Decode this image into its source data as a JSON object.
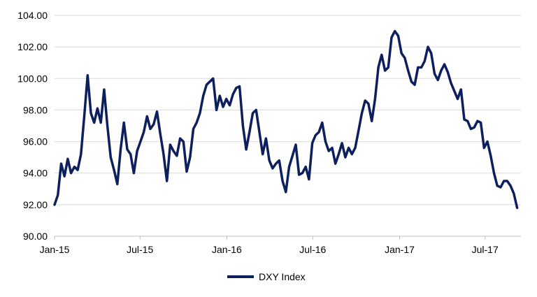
{
  "chart_data": {
    "type": "line",
    "title": "",
    "xlabel": "",
    "ylabel": "",
    "ylim": [
      90,
      104
    ],
    "yticks": [
      "90.00",
      "92.00",
      "94.00",
      "96.00",
      "98.00",
      "100.00",
      "102.00",
      "104.00"
    ],
    "xlim": [
      "2015-01-01",
      "2017-09-15"
    ],
    "xticks": [
      {
        "label": "Jan-15",
        "date": "2015-01-01"
      },
      {
        "label": "Jul-15",
        "date": "2015-07-01"
      },
      {
        "label": "Jan-16",
        "date": "2016-01-01"
      },
      {
        "label": "Jul-16",
        "date": "2016-07-01"
      },
      {
        "label": "Jan-17",
        "date": "2017-01-01"
      },
      {
        "label": "Jul-17",
        "date": "2017-07-01"
      }
    ],
    "grid": "horizontal",
    "legend": "bottom-center",
    "series": [
      {
        "name": "DXY Index",
        "color": "#0d1f5c",
        "points": [
          [
            "2015-01-01",
            92.0
          ],
          [
            "2015-01-08",
            92.6
          ],
          [
            "2015-01-15",
            94.6
          ],
          [
            "2015-01-22",
            93.8
          ],
          [
            "2015-01-29",
            94.9
          ],
          [
            "2015-02-05",
            94.0
          ],
          [
            "2015-02-12",
            94.4
          ],
          [
            "2015-02-19",
            94.2
          ],
          [
            "2015-02-26",
            95.2
          ],
          [
            "2015-03-05",
            97.6
          ],
          [
            "2015-03-12",
            100.2
          ],
          [
            "2015-03-19",
            97.8
          ],
          [
            "2015-03-26",
            97.2
          ],
          [
            "2015-04-02",
            98.1
          ],
          [
            "2015-04-09",
            97.2
          ],
          [
            "2015-04-16",
            99.3
          ],
          [
            "2015-04-23",
            97.0
          ],
          [
            "2015-04-30",
            95.0
          ],
          [
            "2015-05-07",
            94.2
          ],
          [
            "2015-05-14",
            93.3
          ],
          [
            "2015-05-21",
            95.5
          ],
          [
            "2015-05-28",
            97.2
          ],
          [
            "2015-06-04",
            95.5
          ],
          [
            "2015-06-11",
            95.2
          ],
          [
            "2015-06-18",
            94.0
          ],
          [
            "2015-06-25",
            95.4
          ],
          [
            "2015-07-02",
            96.0
          ],
          [
            "2015-07-09",
            96.6
          ],
          [
            "2015-07-16",
            97.6
          ],
          [
            "2015-07-23",
            96.8
          ],
          [
            "2015-07-30",
            97.1
          ],
          [
            "2015-08-06",
            97.9
          ],
          [
            "2015-08-13",
            96.5
          ],
          [
            "2015-08-20",
            95.2
          ],
          [
            "2015-08-27",
            93.5
          ],
          [
            "2015-09-03",
            95.8
          ],
          [
            "2015-09-10",
            95.4
          ],
          [
            "2015-09-17",
            95.1
          ],
          [
            "2015-09-24",
            96.2
          ],
          [
            "2015-10-01",
            96.0
          ],
          [
            "2015-10-08",
            94.1
          ],
          [
            "2015-10-15",
            95.0
          ],
          [
            "2015-10-22",
            96.8
          ],
          [
            "2015-10-29",
            97.2
          ],
          [
            "2015-11-05",
            97.8
          ],
          [
            "2015-11-12",
            98.9
          ],
          [
            "2015-11-19",
            99.6
          ],
          [
            "2015-11-26",
            99.8
          ],
          [
            "2015-12-03",
            100.0
          ],
          [
            "2015-12-10",
            98.0
          ],
          [
            "2015-12-17",
            98.9
          ],
          [
            "2015-12-24",
            98.2
          ],
          [
            "2015-12-31",
            98.7
          ],
          [
            "2016-01-07",
            98.3
          ],
          [
            "2016-01-14",
            99.0
          ],
          [
            "2016-01-21",
            99.4
          ],
          [
            "2016-01-28",
            99.5
          ],
          [
            "2016-02-04",
            97.0
          ],
          [
            "2016-02-11",
            95.5
          ],
          [
            "2016-02-18",
            96.6
          ],
          [
            "2016-02-25",
            97.8
          ],
          [
            "2016-03-03",
            98.0
          ],
          [
            "2016-03-10",
            96.6
          ],
          [
            "2016-03-17",
            95.2
          ],
          [
            "2016-03-24",
            96.2
          ],
          [
            "2016-03-31",
            94.8
          ],
          [
            "2016-04-07",
            94.3
          ],
          [
            "2016-04-14",
            94.6
          ],
          [
            "2016-04-21",
            94.8
          ],
          [
            "2016-04-28",
            93.5
          ],
          [
            "2016-05-05",
            92.8
          ],
          [
            "2016-05-12",
            94.4
          ],
          [
            "2016-05-19",
            95.1
          ],
          [
            "2016-05-26",
            95.8
          ],
          [
            "2016-06-02",
            93.9
          ],
          [
            "2016-06-09",
            94.0
          ],
          [
            "2016-06-16",
            94.4
          ],
          [
            "2016-06-23",
            93.6
          ],
          [
            "2016-06-30",
            95.9
          ],
          [
            "2016-07-07",
            96.4
          ],
          [
            "2016-07-14",
            96.6
          ],
          [
            "2016-07-21",
            97.2
          ],
          [
            "2016-07-28",
            96.0
          ],
          [
            "2016-08-04",
            95.4
          ],
          [
            "2016-08-11",
            95.6
          ],
          [
            "2016-08-18",
            94.6
          ],
          [
            "2016-08-25",
            95.2
          ],
          [
            "2016-09-01",
            95.9
          ],
          [
            "2016-09-08",
            95.0
          ],
          [
            "2016-09-15",
            95.6
          ],
          [
            "2016-09-22",
            95.2
          ],
          [
            "2016-09-29",
            95.6
          ],
          [
            "2016-10-06",
            96.7
          ],
          [
            "2016-10-13",
            97.8
          ],
          [
            "2016-10-20",
            98.6
          ],
          [
            "2016-10-27",
            98.4
          ],
          [
            "2016-11-03",
            97.3
          ],
          [
            "2016-11-10",
            98.7
          ],
          [
            "2016-11-17",
            100.7
          ],
          [
            "2016-11-24",
            101.5
          ],
          [
            "2016-12-01",
            100.5
          ],
          [
            "2016-12-08",
            100.7
          ],
          [
            "2016-12-15",
            102.6
          ],
          [
            "2016-12-22",
            103.0
          ],
          [
            "2016-12-29",
            102.7
          ],
          [
            "2017-01-05",
            101.6
          ],
          [
            "2017-01-12",
            101.3
          ],
          [
            "2017-01-19",
            100.5
          ],
          [
            "2017-01-26",
            99.8
          ],
          [
            "2017-02-02",
            99.6
          ],
          [
            "2017-02-09",
            100.7
          ],
          [
            "2017-02-16",
            100.7
          ],
          [
            "2017-02-23",
            101.1
          ],
          [
            "2017-03-02",
            102.0
          ],
          [
            "2017-03-09",
            101.6
          ],
          [
            "2017-03-16",
            100.3
          ],
          [
            "2017-03-23",
            99.9
          ],
          [
            "2017-03-30",
            100.5
          ],
          [
            "2017-04-06",
            100.9
          ],
          [
            "2017-04-13",
            100.4
          ],
          [
            "2017-04-20",
            99.7
          ],
          [
            "2017-04-27",
            99.2
          ],
          [
            "2017-05-04",
            98.7
          ],
          [
            "2017-05-11",
            99.3
          ],
          [
            "2017-05-18",
            97.4
          ],
          [
            "2017-05-25",
            97.3
          ],
          [
            "2017-06-01",
            96.8
          ],
          [
            "2017-06-08",
            96.9
          ],
          [
            "2017-06-15",
            97.3
          ],
          [
            "2017-06-22",
            97.2
          ],
          [
            "2017-06-29",
            95.6
          ],
          [
            "2017-07-06",
            96.0
          ],
          [
            "2017-07-13",
            95.1
          ],
          [
            "2017-07-20",
            94.0
          ],
          [
            "2017-07-27",
            93.2
          ],
          [
            "2017-08-03",
            93.1
          ],
          [
            "2017-08-10",
            93.5
          ],
          [
            "2017-08-17",
            93.5
          ],
          [
            "2017-08-24",
            93.2
          ],
          [
            "2017-08-31",
            92.7
          ],
          [
            "2017-09-07",
            91.8
          ]
        ]
      }
    ]
  }
}
